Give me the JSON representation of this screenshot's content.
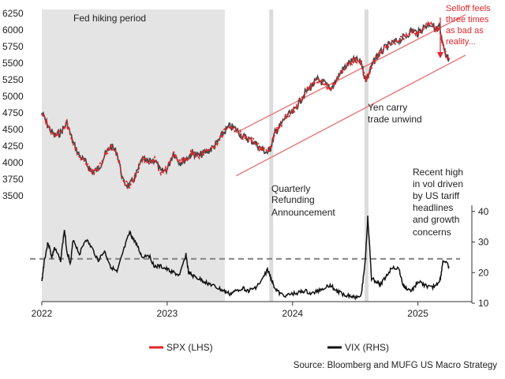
{
  "chart_data": {
    "type": "line",
    "colors": {
      "spx": "#e0262a",
      "spx_dark": "#444444",
      "vix": "#111111",
      "channel": "#e8787a",
      "shade": "#e4e4e4",
      "bar": "#dcdcdc",
      "ref": "#888888"
    },
    "left_axis": {
      "ticks": [
        3500,
        3750,
        4000,
        4250,
        4500,
        4750,
        5000,
        5250,
        5500,
        5750,
        6000,
        6250
      ],
      "range": [
        3450,
        6250
      ]
    },
    "right_axis": {
      "ticks": [
        10,
        20,
        30,
        40
      ],
      "range": [
        10,
        42
      ]
    },
    "x_axis": {
      "ticks": [
        "2022",
        "2023",
        "2024",
        "2025"
      ],
      "range": [
        2022.0,
        2025.38
      ]
    },
    "series": [
      {
        "name": "SPX (LHS)",
        "axis": "left",
        "x": [
          2022.0,
          2022.05,
          2022.1,
          2022.15,
          2022.2,
          2022.25,
          2022.3,
          2022.35,
          2022.4,
          2022.45,
          2022.5,
          2022.55,
          2022.6,
          2022.65,
          2022.7,
          2022.75,
          2022.8,
          2022.85,
          2022.9,
          2022.95,
          2023.0,
          2023.05,
          2023.1,
          2023.15,
          2023.2,
          2023.25,
          2023.3,
          2023.35,
          2023.4,
          2023.45,
          2023.5,
          2023.55,
          2023.6,
          2023.65,
          2023.7,
          2023.75,
          2023.8,
          2023.83,
          2023.86,
          2023.9,
          2023.95,
          2024.0,
          2024.05,
          2024.1,
          2024.15,
          2024.2,
          2024.25,
          2024.3,
          2024.35,
          2024.4,
          2024.45,
          2024.5,
          2024.55,
          2024.58,
          2024.6,
          2024.63,
          2024.67,
          2024.7,
          2024.75,
          2024.8,
          2024.85,
          2024.9,
          2024.95,
          2025.0,
          2025.05,
          2025.1,
          2025.15,
          2025.17,
          2025.2,
          2025.22,
          2025.25
        ],
        "values": [
          4750,
          4550,
          4400,
          4450,
          4600,
          4300,
          4100,
          4000,
          3850,
          3900,
          4100,
          4250,
          4150,
          3700,
          3650,
          3800,
          4050,
          4000,
          4050,
          3850,
          3900,
          4150,
          4000,
          4050,
          4150,
          4100,
          4150,
          4200,
          4300,
          4450,
          4550,
          4500,
          4400,
          4350,
          4300,
          4200,
          4150,
          4250,
          4450,
          4550,
          4700,
          4750,
          4900,
          5050,
          5150,
          5250,
          5200,
          5100,
          5250,
          5400,
          5500,
          5550,
          5500,
          5250,
          5300,
          5450,
          5600,
          5650,
          5750,
          5800,
          5850,
          5900,
          6000,
          5950,
          6050,
          6100,
          6000,
          6050,
          5750,
          5650,
          5550
        ]
      },
      {
        "name": "VIX (RHS)",
        "axis": "right",
        "x": [
          2022.0,
          2022.02,
          2022.05,
          2022.08,
          2022.1,
          2022.15,
          2022.18,
          2022.2,
          2022.23,
          2022.25,
          2022.3,
          2022.35,
          2022.4,
          2022.45,
          2022.5,
          2022.55,
          2022.6,
          2022.65,
          2022.7,
          2022.73,
          2022.76,
          2022.8,
          2022.85,
          2022.9,
          2022.95,
          2023.0,
          2023.05,
          2023.1,
          2023.15,
          2023.17,
          2023.2,
          2023.25,
          2023.3,
          2023.35,
          2023.4,
          2023.45,
          2023.5,
          2023.55,
          2023.6,
          2023.65,
          2023.7,
          2023.75,
          2023.8,
          2023.83,
          2023.86,
          2023.9,
          2023.95,
          2024.0,
          2024.05,
          2024.1,
          2024.15,
          2024.2,
          2024.25,
          2024.3,
          2024.35,
          2024.4,
          2024.45,
          2024.5,
          2024.55,
          2024.58,
          2024.6,
          2024.63,
          2024.67,
          2024.7,
          2024.75,
          2024.8,
          2024.85,
          2024.88,
          2024.9,
          2024.95,
          2025.0,
          2025.05,
          2025.1,
          2025.15,
          2025.18,
          2025.2,
          2025.25
        ],
        "values": [
          17,
          24,
          30,
          25,
          28,
          24,
          34,
          27,
          23,
          31,
          26,
          31,
          28,
          24,
          27,
          22,
          20,
          27,
          33,
          31,
          29,
          25,
          26,
          22,
          22,
          21,
          20,
          19,
          26,
          20,
          19,
          18,
          17,
          16,
          15,
          14,
          13,
          14,
          15,
          14,
          15,
          17,
          21,
          18,
          15,
          13,
          12.5,
          13,
          13.5,
          14,
          13,
          14,
          15,
          16,
          14,
          13,
          12.5,
          12,
          13,
          24,
          38,
          18,
          17,
          16,
          19,
          22,
          21,
          16,
          15,
          14,
          17,
          16,
          15,
          16,
          18,
          24,
          22
        ]
      }
    ],
    "reference_line": {
      "axis": "right",
      "value": 24.5
    },
    "shaded_region": {
      "label": "Fed hiking period",
      "x_start": 2022.0,
      "x_end": 2023.46
    },
    "event_bars": [
      {
        "label": "Quarterly Refunding Announcement",
        "x": 2023.83
      },
      {
        "label": "Yen carry trade unwind",
        "x": 2024.59
      }
    ],
    "channel": {
      "upper": {
        "x": [
          2023.55,
          2025.38
        ],
        "y": [
          4450,
          6230
        ]
      },
      "lower": {
        "x": [
          2023.55,
          2025.38
        ],
        "y": [
          3800,
          5620
        ]
      }
    },
    "annotations": {
      "fed": "Fed hiking period",
      "refund": [
        "Quarterly",
        "Refunding",
        "Announcement"
      ],
      "yen": [
        "Yen carry",
        "trade unwind"
      ],
      "selloff": [
        "Selloff feels",
        "three times",
        "as bad as",
        "reality..."
      ],
      "recent": [
        "Recent high",
        "in vol driven",
        "by US tariff",
        "headlines",
        "and growth",
        "concerns"
      ]
    },
    "legend": {
      "spx": "SPX (LHS)",
      "vix": "VIX (RHS)"
    },
    "source": "Source: Bloomberg and MUFG US Macro Strategy"
  }
}
